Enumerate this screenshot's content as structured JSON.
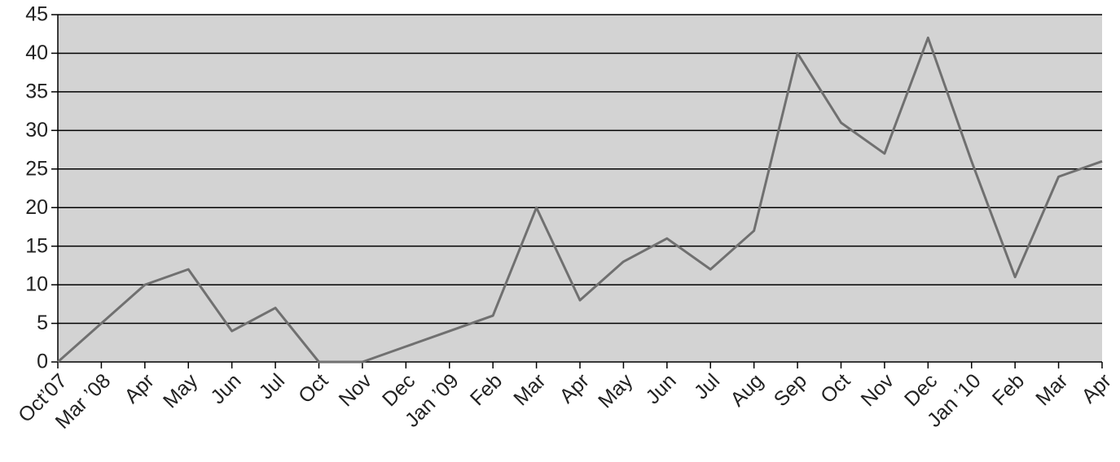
{
  "chart_data": {
    "type": "line",
    "categories": [
      "Oct’07",
      "Mar ’08",
      "Apr",
      "May",
      "Jun",
      "Jul",
      "Oct",
      "Nov",
      "Dec",
      "Jan ’09",
      "Feb",
      "Mar",
      "Apr",
      "May",
      "Jun",
      "Jul",
      "Aug",
      "Sep",
      "Oct",
      "Nov",
      "Dec",
      "Jan ’10",
      "Feb",
      "Mar",
      "Apr"
    ],
    "values": [
      0,
      5,
      10,
      12,
      4,
      7,
      0,
      0,
      2,
      4,
      6,
      20,
      8,
      13,
      16,
      12,
      17,
      40,
      31,
      27,
      42,
      26,
      11,
      24,
      26
    ],
    "color": "#707070",
    "ylim": [
      0,
      45
    ],
    "yticks": [
      0,
      5,
      10,
      15,
      20,
      25,
      30,
      35,
      40,
      45
    ],
    "grid": true
  }
}
